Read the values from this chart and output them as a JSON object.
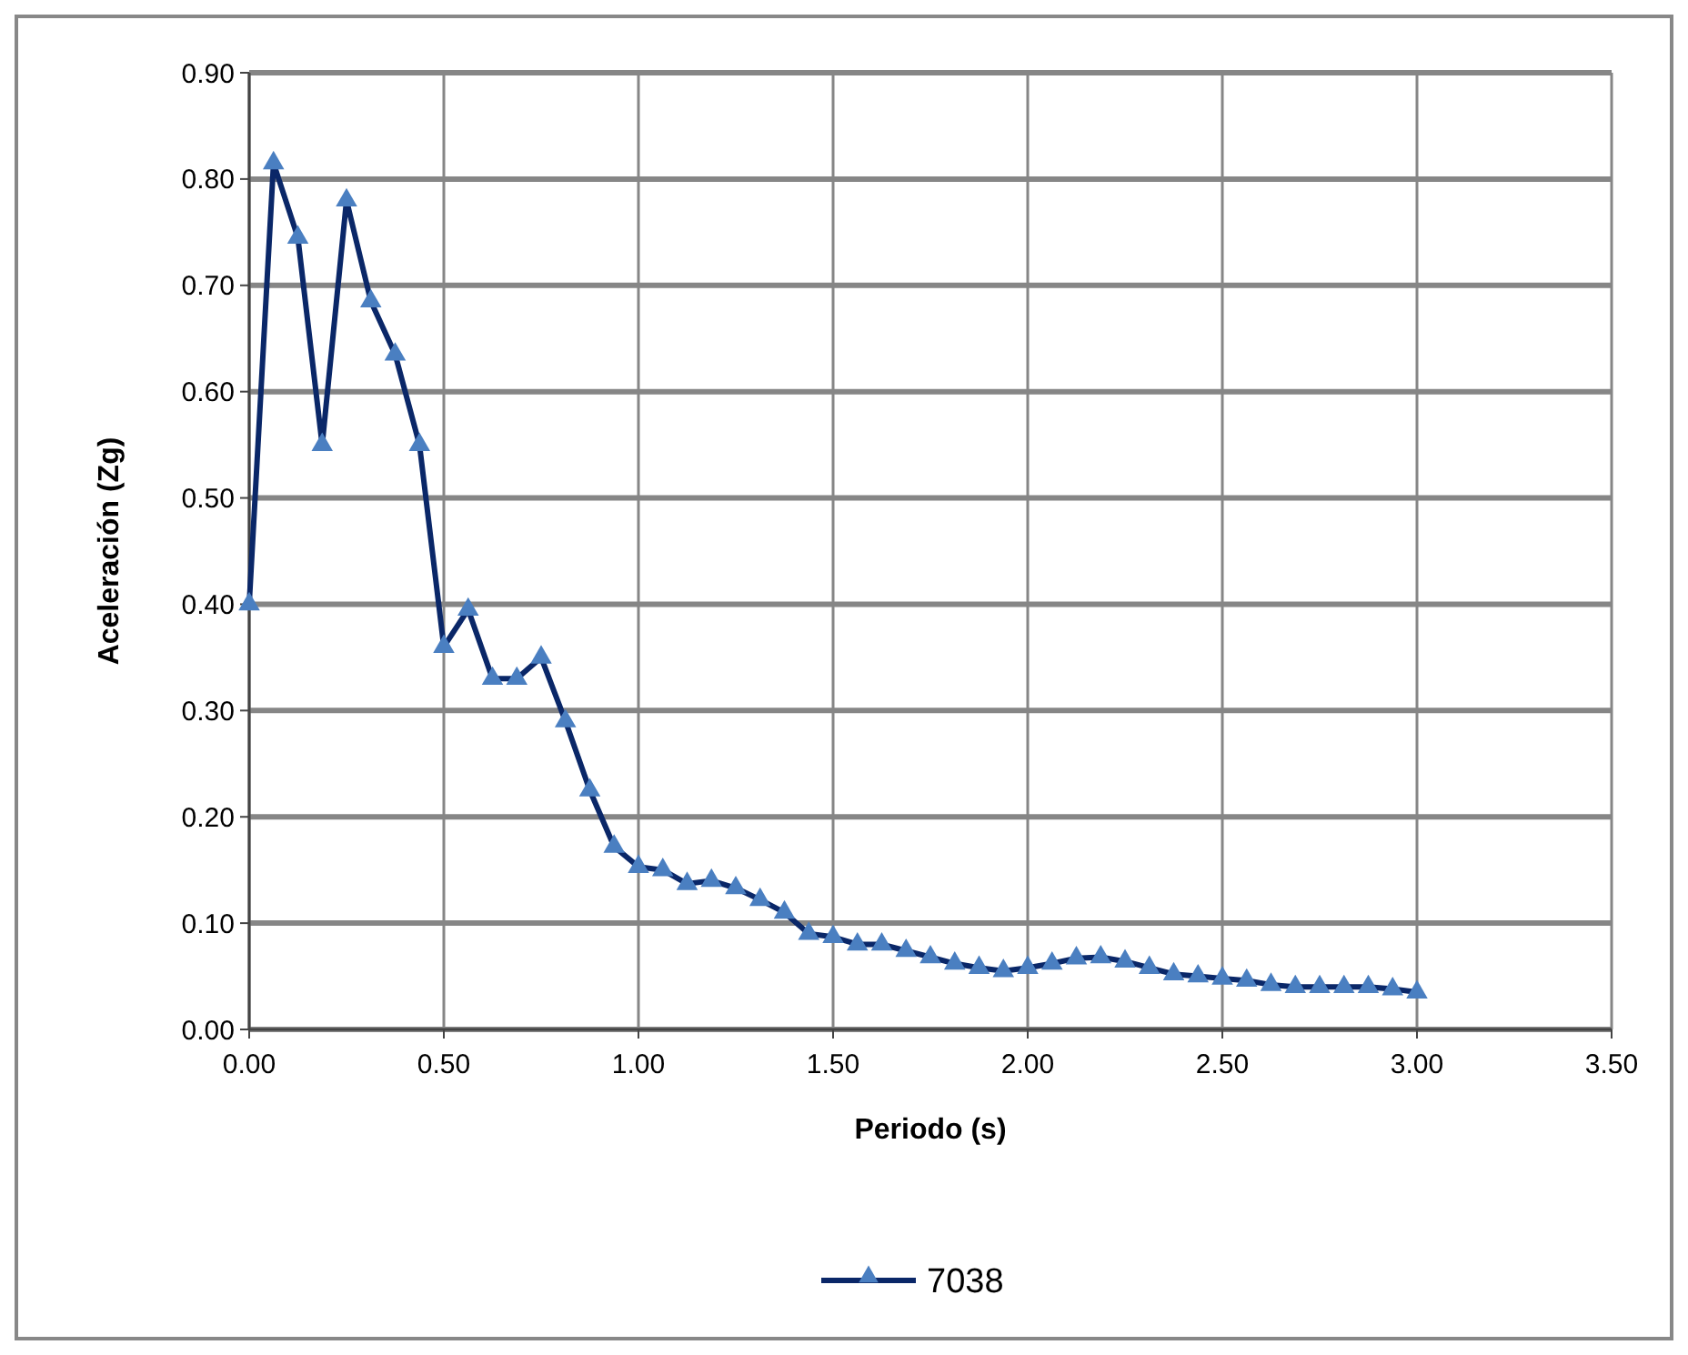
{
  "chart_data": {
    "type": "line",
    "xlabel": "Periodo (s)",
    "ylabel": "Aceleración (Zg)",
    "xlim": [
      0,
      3.5
    ],
    "xticks": [
      {
        "value": 0,
        "label": "0.00"
      },
      {
        "value": 0.5,
        "label": "0.50"
      },
      {
        "value": 1,
        "label": "1.00"
      },
      {
        "value": 1.5,
        "label": "1.50"
      },
      {
        "value": 2,
        "label": "2.00"
      },
      {
        "value": 2.5,
        "label": "2.50"
      },
      {
        "value": 3,
        "label": "3.00"
      },
      {
        "value": 3.5,
        "label": "3.50"
      }
    ],
    "ylim": [
      0,
      0.9
    ],
    "yticks": [
      {
        "value": 0,
        "label": "0.00"
      },
      {
        "value": 0.1,
        "label": "0.10"
      },
      {
        "value": 0.2,
        "label": "0.20"
      },
      {
        "value": 0.3,
        "label": "0.30"
      },
      {
        "value": 0.4,
        "label": "0.40"
      },
      {
        "value": 0.5,
        "label": "0.50"
      },
      {
        "value": 0.6,
        "label": "0.60"
      },
      {
        "value": 0.7,
        "label": "0.70"
      },
      {
        "value": 0.8,
        "label": "0.80"
      },
      {
        "value": 0.9,
        "label": "0.90"
      }
    ],
    "grid": true,
    "legend": "bottom",
    "marker": "triangle",
    "line_style": "solid",
    "x": [
      0,
      0.0625,
      0.125,
      0.1875,
      0.25,
      0.3125,
      0.375,
      0.4375,
      0.5,
      0.5625,
      0.625,
      0.6875,
      0.75,
      0.8125,
      0.875,
      0.9375,
      1,
      1.0625,
      1.125,
      1.1875,
      1.25,
      1.3125,
      1.375,
      1.4375,
      1.5,
      1.5625,
      1.625,
      1.6875,
      1.75,
      1.8125,
      1.875,
      1.9375,
      2,
      2.0625,
      2.125,
      2.1875,
      2.25,
      2.3125,
      2.375,
      2.4375,
      2.5,
      2.5625,
      2.625,
      2.6875,
      2.75,
      2.8125,
      2.875,
      2.9375,
      3
    ],
    "series": [
      {
        "name": "7038",
        "color": "#0a2768",
        "values": [
          0.4,
          0.815,
          0.745,
          0.55,
          0.78,
          0.685,
          0.635,
          0.55,
          0.36,
          0.395,
          0.33,
          0.33,
          0.35,
          0.29,
          0.225,
          0.172,
          0.153,
          0.15,
          0.137,
          0.14,
          0.133,
          0.122,
          0.11,
          0.09,
          0.087,
          0.08,
          0.08,
          0.074,
          0.068,
          0.062,
          0.058,
          0.055,
          0.058,
          0.062,
          0.067,
          0.068,
          0.064,
          0.058,
          0.052,
          0.05,
          0.048,
          0.046,
          0.042,
          0.04,
          0.04,
          0.04,
          0.04,
          0.038,
          0.035
        ]
      }
    ]
  }
}
